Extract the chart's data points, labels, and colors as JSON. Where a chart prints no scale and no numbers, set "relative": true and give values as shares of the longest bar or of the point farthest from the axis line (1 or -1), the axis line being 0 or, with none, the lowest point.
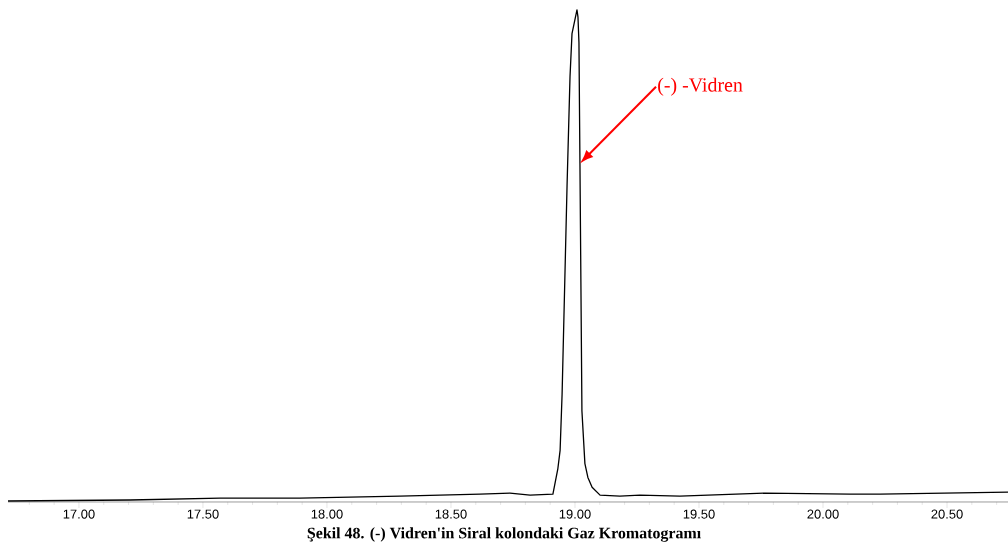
{
  "chart_data": {
    "type": "line",
    "relative": true,
    "color": "#000000",
    "x": [
      16.714,
      17.206,
      17.569,
      17.891,
      18.294,
      18.617,
      18.738,
      18.819,
      18.911,
      18.931,
      18.94,
      18.948,
      18.968,
      18.98,
      18.988,
      19.008,
      19.012,
      19.016,
      19.02,
      19.028,
      19.04,
      19.052,
      19.069,
      19.101,
      19.181,
      19.262,
      19.423,
      19.766,
      20.109,
      20.23,
      20.746
    ],
    "values": [
      0.002,
      0.004,
      0.008,
      0.008,
      0.012,
      0.016,
      0.018,
      0.014,
      0.016,
      0.068,
      0.105,
      0.219,
      0.642,
      0.865,
      0.952,
      1,
      0.986,
      0.934,
      0.688,
      0.185,
      0.078,
      0.05,
      0.03,
      0.014,
      0.012,
      0.014,
      0.012,
      0.018,
      0.016,
      0.016,
      0.02
    ],
    "xlim": [
      16.714,
      20.746
    ],
    "xticks": [
      {
        "value": 16.8,
        "label": null
      },
      {
        "value": 16.9,
        "label": null
      },
      {
        "value": 17,
        "label": "17.00"
      },
      {
        "value": 17.1,
        "label": null
      },
      {
        "value": 17.2,
        "label": null
      },
      {
        "value": 17.3,
        "label": null
      },
      {
        "value": 17.4,
        "label": null
      },
      {
        "value": 17.5,
        "label": "17.50"
      },
      {
        "value": 17.6,
        "label": null
      },
      {
        "value": 17.7,
        "label": null
      },
      {
        "value": 17.8,
        "label": null
      },
      {
        "value": 17.9,
        "label": null
      },
      {
        "value": 18,
        "label": "18.00"
      },
      {
        "value": 18.1,
        "label": null
      },
      {
        "value": 18.2,
        "label": null
      },
      {
        "value": 18.3,
        "label": null
      },
      {
        "value": 18.4,
        "label": null
      },
      {
        "value": 18.5,
        "label": "18.50"
      },
      {
        "value": 18.6,
        "label": null
      },
      {
        "value": 18.7,
        "label": null
      },
      {
        "value": 18.8,
        "label": null
      },
      {
        "value": 18.9,
        "label": null
      },
      {
        "value": 19,
        "label": "19.00"
      },
      {
        "value": 19.1,
        "label": null
      },
      {
        "value": 19.2,
        "label": null
      },
      {
        "value": 19.3,
        "label": null
      },
      {
        "value": 19.4,
        "label": null
      },
      {
        "value": 19.5,
        "label": "19.50"
      },
      {
        "value": 19.6,
        "label": null
      },
      {
        "value": 19.7,
        "label": null
      },
      {
        "value": 19.8,
        "label": null
      },
      {
        "value": 19.9,
        "label": null
      },
      {
        "value": 20,
        "label": "20.00"
      },
      {
        "value": 20.1,
        "label": null
      },
      {
        "value": 20.2,
        "label": null
      },
      {
        "value": 20.3,
        "label": null
      },
      {
        "value": 20.4,
        "label": null
      },
      {
        "value": 20.5,
        "label": "20.50"
      },
      {
        "value": 20.6,
        "label": null
      },
      {
        "value": 20.7,
        "label": null
      }
    ],
    "annotations": [
      "(-) -Vidren",
      "Şekil 48. (-) Vidren'in Siral kolondaki Gaz Kromatogramı"
    ],
    "grid": false,
    "marker": "none",
    "line_style": "solid"
  }
}
